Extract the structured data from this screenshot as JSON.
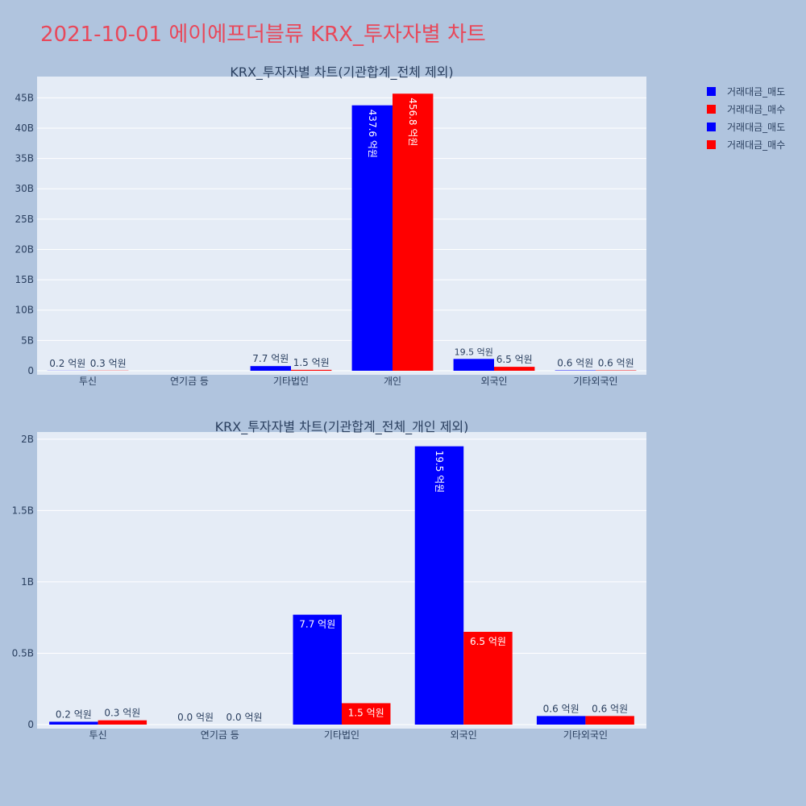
{
  "page": {
    "title": "2021-10-01 에이에프더블류 KRX_투자자별 차트"
  },
  "colors": {
    "sell": "#0000ff",
    "buy": "#ff0000",
    "title": "#e8485a",
    "page_bg": "#b0c4de",
    "plot_bg": "#e5ecf6"
  },
  "legend": {
    "placement": "top-right",
    "items": [
      {
        "label": "거래대금_매도",
        "color": "#0000ff"
      },
      {
        "label": "거래대금_매수",
        "color": "#ff0000"
      },
      {
        "label": "거래대금_매도",
        "color": "#0000ff"
      },
      {
        "label": "거래대금_매수",
        "color": "#ff0000"
      }
    ]
  },
  "chart_data": [
    {
      "type": "bar",
      "title": "KRX_투자자별 차트(기관합계_전체 제외)",
      "categories": [
        "투신",
        "연기금 등",
        "기타법인",
        "개인",
        "외국인",
        "기타외국인"
      ],
      "ylim": [
        0,
        48500000000
      ],
      "yticks": [
        0,
        5000000000,
        10000000000,
        15000000000,
        20000000000,
        25000000000,
        30000000000,
        35000000000,
        40000000000,
        45000000000
      ],
      "yticklabels": [
        "0",
        "5B",
        "10B",
        "15B",
        "20B",
        "25B",
        "30B",
        "35B",
        "40B",
        "45B"
      ],
      "grid": true,
      "series": [
        {
          "name": "거래대금_매도",
          "color": "#0000ff",
          "values": [
            20000000,
            0,
            770000000,
            43760000000,
            1950000000,
            60000000
          ],
          "labels": [
            "0.2 억원",
            "",
            "7.7 억원",
            "437.6 억원",
            "19.5 억원",
            "0.6 억원"
          ]
        },
        {
          "name": "거래대금_매수",
          "color": "#ff0000",
          "values": [
            30000000,
            0,
            150000000,
            45680000000,
            650000000,
            60000000
          ],
          "labels": [
            "0.3 억원",
            "",
            "1.5 억원",
            "456.8 억원",
            "6.5 억원",
            "0.6 억원"
          ]
        }
      ]
    },
    {
      "type": "bar",
      "title": "KRX_투자자별 차트(기관합계_전체_개인 제외)",
      "categories": [
        "투신",
        "연기금 등",
        "기타법인",
        "외국인",
        "기타외국인"
      ],
      "ylim": [
        0,
        2050000000
      ],
      "yticks": [
        0,
        500000000,
        1000000000,
        1500000000,
        2000000000
      ],
      "yticklabels": [
        "0",
        "0.5B",
        "1B",
        "1.5B",
        "2B"
      ],
      "grid": true,
      "series": [
        {
          "name": "거래대금_매도",
          "color": "#0000ff",
          "values": [
            20000000,
            0,
            770000000,
            1950000000,
            60000000
          ],
          "labels": [
            "0.2 억원",
            "0.0 억원",
            "7.7 억원",
            "19.5 억원",
            "0.6 억원"
          ]
        },
        {
          "name": "거래대금_매수",
          "color": "#ff0000",
          "values": [
            30000000,
            0,
            150000000,
            650000000,
            60000000
          ],
          "labels": [
            "0.3 억원",
            "0.0 억원",
            "1.5 억원",
            "6.5 억원",
            "0.6 억원"
          ]
        }
      ]
    }
  ]
}
